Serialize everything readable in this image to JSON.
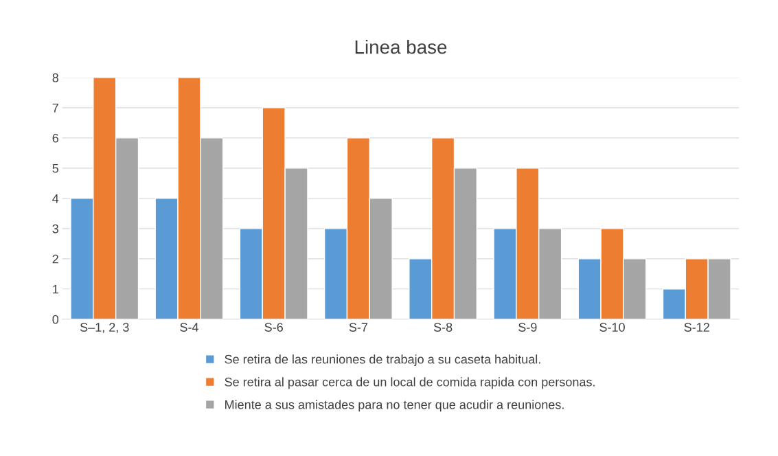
{
  "chart_data": {
    "type": "bar",
    "title": "Linea base",
    "categories": [
      "S–1, 2, 3",
      "S-4",
      "S-6",
      "S-7",
      "S-8",
      "S-9",
      "S-10",
      "S-12"
    ],
    "series": [
      {
        "name": "Se retira de las reuniones de trabajo a su caseta habitual.",
        "color": "#5b9bd5",
        "values": [
          4,
          4,
          3,
          3,
          2,
          3,
          2,
          1
        ]
      },
      {
        "name": "Se retira al pasar cerca de un local de comida rapida con personas.",
        "color": "#ed7d31",
        "values": [
          8,
          8,
          7,
          6,
          6,
          5,
          3,
          2
        ]
      },
      {
        "name": "Miente a sus amistades para no tener que acudir a reuniones.",
        "color": "#a5a5a5",
        "values": [
          6,
          6,
          5,
          4,
          5,
          3,
          2,
          2
        ]
      }
    ],
    "ylim": [
      0,
      8
    ],
    "yticks": [
      0,
      1,
      2,
      3,
      4,
      5,
      6,
      7,
      8
    ],
    "grid": "y",
    "legend": "bottom"
  }
}
